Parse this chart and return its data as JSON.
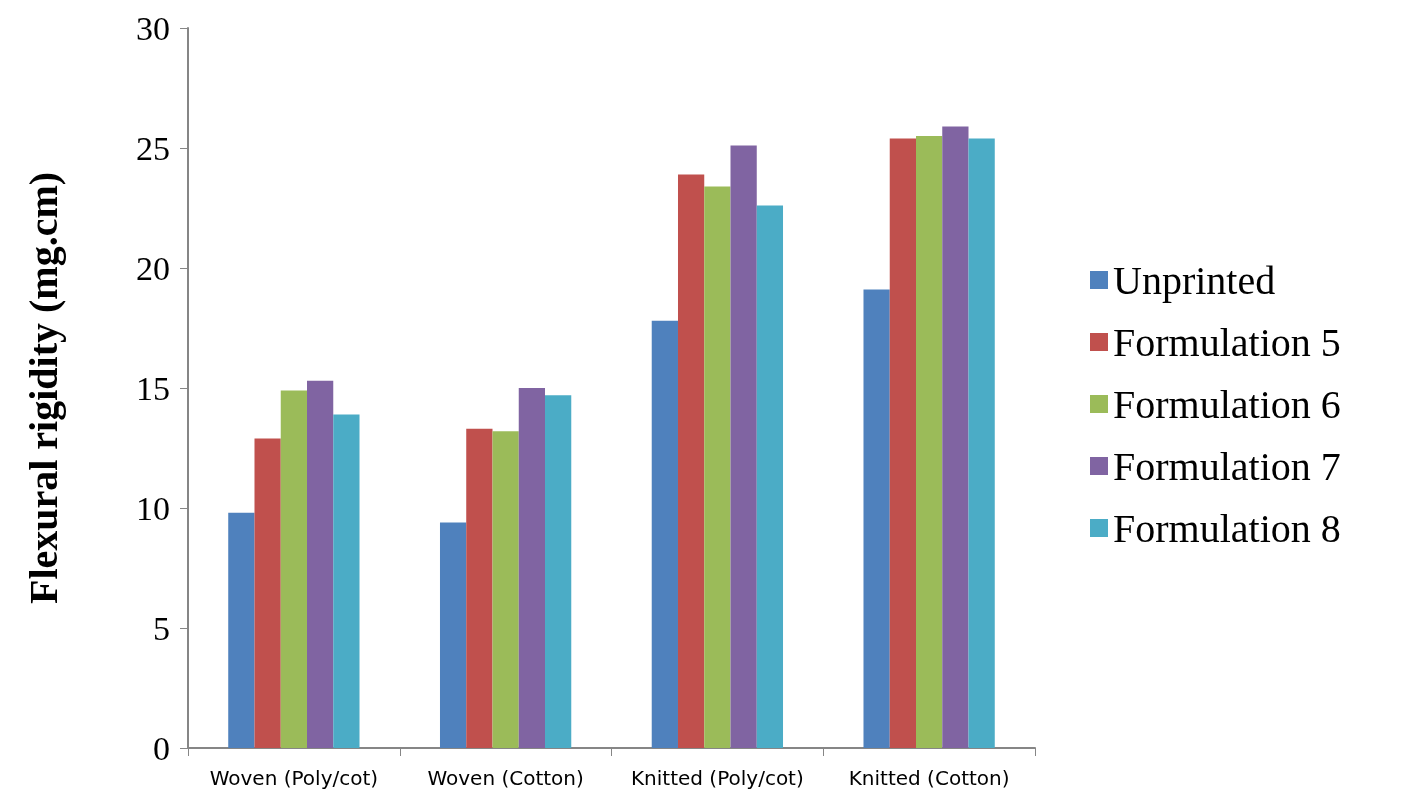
{
  "chart_data": {
    "type": "bar",
    "ylabel": "Flexural rigidity (mg.cm)",
    "categories": [
      "Woven (Poly/cot)",
      "Woven (Cotton)",
      "Knitted (Poly/cot)",
      "Knitted (Cotton)"
    ],
    "series": [
      {
        "name": "Unprinted",
        "color": "#4f81bd",
        "values": [
          9.8,
          9.4,
          17.8,
          19.1
        ]
      },
      {
        "name": "Formulation 5",
        "color": "#c0504d",
        "values": [
          12.9,
          13.3,
          23.9,
          25.4
        ]
      },
      {
        "name": "Formulation 6",
        "color": "#9bbb59",
        "values": [
          14.9,
          13.2,
          23.4,
          25.5
        ]
      },
      {
        "name": "Formulation 7",
        "color": "#8064a2",
        "values": [
          15.3,
          15.0,
          25.1,
          25.9
        ]
      },
      {
        "name": "Formulation 8",
        "color": "#4bacc6",
        "values": [
          13.9,
          14.7,
          22.6,
          25.4
        ]
      }
    ],
    "ylim": [
      0,
      30
    ],
    "yticks": [
      0,
      5,
      10,
      15,
      20,
      25,
      30
    ],
    "grid": false,
    "legend": "right"
  }
}
